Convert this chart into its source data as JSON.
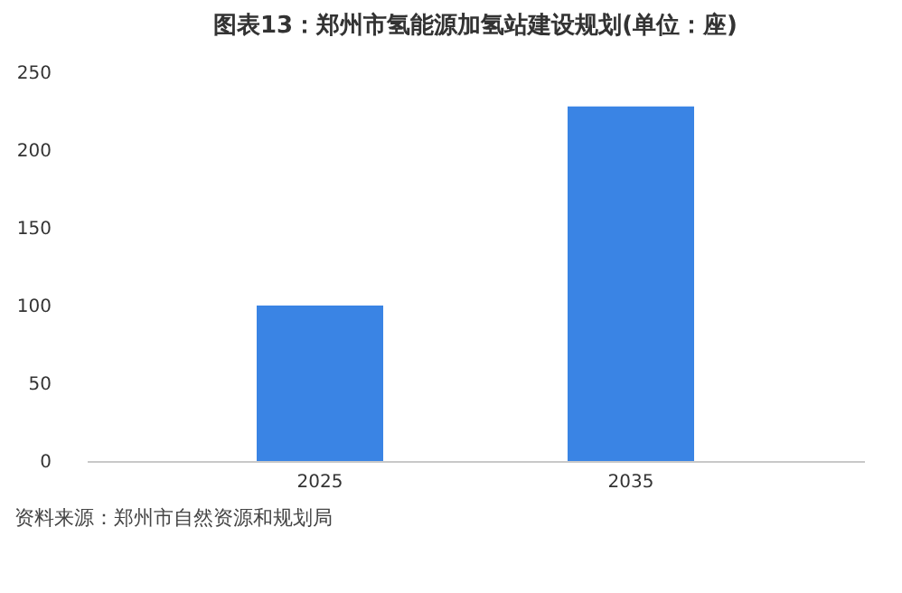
{
  "chart_data": {
    "type": "bar",
    "title": "图表13：郑州市氢能源加氢站建设规划(单位：座)",
    "categories": [
      "2025",
      "2035"
    ],
    "values": [
      100,
      228
    ],
    "color": "#3a84e4",
    "ylim": [
      0,
      250
    ],
    "yticks": [
      0,
      50,
      100,
      150,
      200,
      250
    ],
    "grid": false,
    "annotations": [
      "资料来源：郑州市自然资源和规划局"
    ]
  }
}
